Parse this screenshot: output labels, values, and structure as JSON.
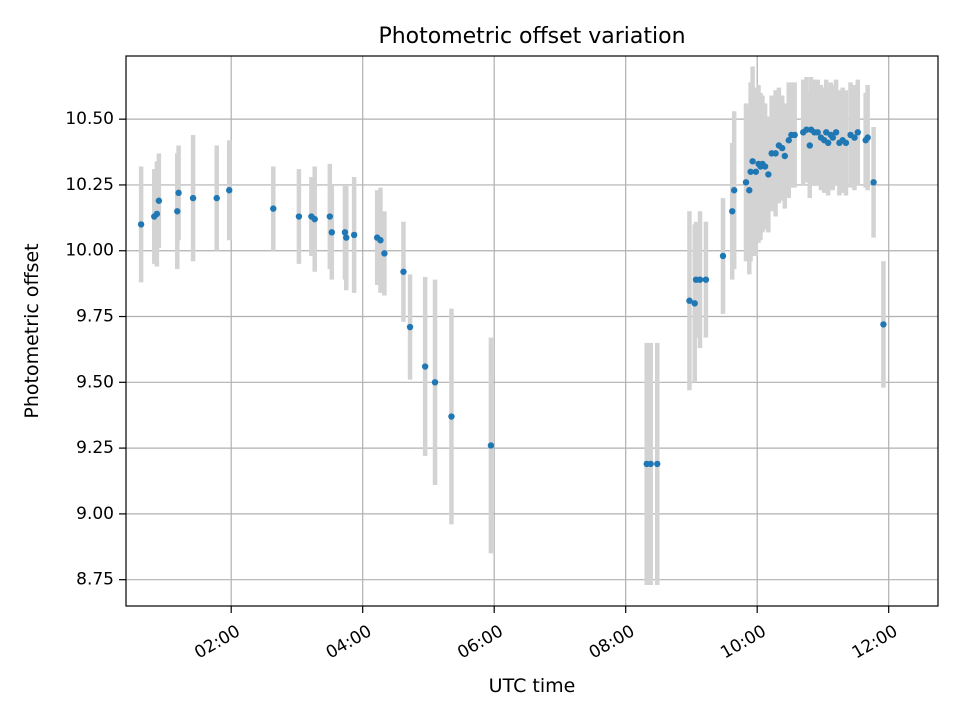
{
  "chart_data": {
    "type": "scatter",
    "title": "Photometric offset variation",
    "xlabel": "UTC time",
    "ylabel": "Photometric offset",
    "xlim_hours": [
      0.4,
      12.75
    ],
    "ylim": [
      8.65,
      10.74
    ],
    "xticks": [
      {
        "value": 2,
        "label": "02:00"
      },
      {
        "value": 4,
        "label": "04:00"
      },
      {
        "value": 6,
        "label": "06:00"
      },
      {
        "value": 8,
        "label": "08:00"
      },
      {
        "value": 10,
        "label": "10:00"
      },
      {
        "value": 12,
        "label": "12:00"
      }
    ],
    "yticks": [
      {
        "value": 8.75,
        "label": "8.75"
      },
      {
        "value": 9.0,
        "label": "9.00"
      },
      {
        "value": 9.25,
        "label": "9.25"
      },
      {
        "value": 9.5,
        "label": "9.50"
      },
      {
        "value": 9.75,
        "label": "9.75"
      },
      {
        "value": 10.0,
        "label": "10.00"
      },
      {
        "value": 10.25,
        "label": "10.25"
      },
      {
        "value": 10.5,
        "label": "10.50"
      }
    ],
    "grid": true,
    "colors": {
      "points": "#1f77b4",
      "errorbars": "#d3d3d3",
      "grid": "#b0b0b0"
    },
    "series": [
      {
        "name": "Photometric offset",
        "x_hours": [
          0.63,
          0.83,
          0.87,
          0.9,
          1.18,
          1.2,
          1.42,
          1.78,
          1.97,
          2.64,
          3.03,
          3.22,
          3.27,
          3.5,
          3.53,
          3.73,
          3.75,
          3.87,
          4.22,
          4.27,
          4.33,
          4.62,
          4.72,
          4.95,
          5.1,
          5.35,
          5.95,
          8.32,
          8.38,
          8.48,
          8.97,
          9.05,
          9.07,
          9.13,
          9.22,
          9.48,
          9.62,
          9.65,
          9.83,
          9.88,
          9.9,
          9.93,
          9.98,
          10.02,
          10.05,
          10.08,
          10.12,
          10.17,
          10.22,
          10.28,
          10.33,
          10.38,
          10.42,
          10.48,
          10.52,
          10.57,
          10.7,
          10.75,
          10.8,
          10.82,
          10.87,
          10.92,
          10.97,
          11.02,
          11.05,
          11.08,
          11.12,
          11.15,
          11.2,
          11.25,
          11.3,
          11.35,
          11.42,
          11.48,
          11.53,
          11.65,
          11.68,
          11.77,
          11.92
        ],
        "y": [
          10.1,
          10.13,
          10.14,
          10.19,
          10.15,
          10.22,
          10.2,
          10.2,
          10.23,
          10.16,
          10.13,
          10.13,
          10.12,
          10.13,
          10.07,
          10.07,
          10.05,
          10.06,
          10.05,
          10.04,
          9.99,
          9.92,
          9.71,
          9.56,
          9.5,
          9.37,
          9.26,
          9.19,
          9.19,
          9.19,
          9.81,
          9.8,
          9.89,
          9.89,
          9.89,
          9.98,
          10.15,
          10.23,
          10.26,
          10.23,
          10.3,
          10.34,
          10.3,
          10.33,
          10.32,
          10.33,
          10.32,
          10.29,
          10.37,
          10.37,
          10.4,
          10.39,
          10.36,
          10.42,
          10.44,
          10.44,
          10.45,
          10.46,
          10.4,
          10.46,
          10.45,
          10.45,
          10.43,
          10.42,
          10.45,
          10.41,
          10.44,
          10.43,
          10.45,
          10.41,
          10.42,
          10.41,
          10.44,
          10.43,
          10.45,
          10.42,
          10.43,
          10.26,
          9.72
        ],
        "err": [
          0.22,
          0.18,
          0.2,
          0.18,
          0.22,
          0.18,
          0.24,
          0.2,
          0.19,
          0.16,
          0.18,
          0.15,
          0.2,
          0.2,
          0.18,
          0.18,
          0.2,
          0.22,
          0.18,
          0.2,
          0.16,
          0.19,
          0.2,
          0.34,
          0.39,
          0.41,
          0.41,
          0.46,
          0.46,
          0.46,
          0.34,
          0.3,
          0.22,
          0.26,
          0.22,
          0.22,
          0.26,
          0.3,
          0.3,
          0.32,
          0.34,
          0.36,
          0.32,
          0.3,
          0.28,
          0.26,
          0.24,
          0.22,
          0.22,
          0.24,
          0.22,
          0.2,
          0.2,
          0.22,
          0.2,
          0.2,
          0.2,
          0.2,
          0.2,
          0.2,
          0.2,
          0.2,
          0.2,
          0.2,
          0.2,
          0.2,
          0.2,
          0.2,
          0.2,
          0.2,
          0.2,
          0.2,
          0.2,
          0.2,
          0.2,
          0.18,
          0.2,
          0.21,
          0.24
        ]
      }
    ]
  }
}
